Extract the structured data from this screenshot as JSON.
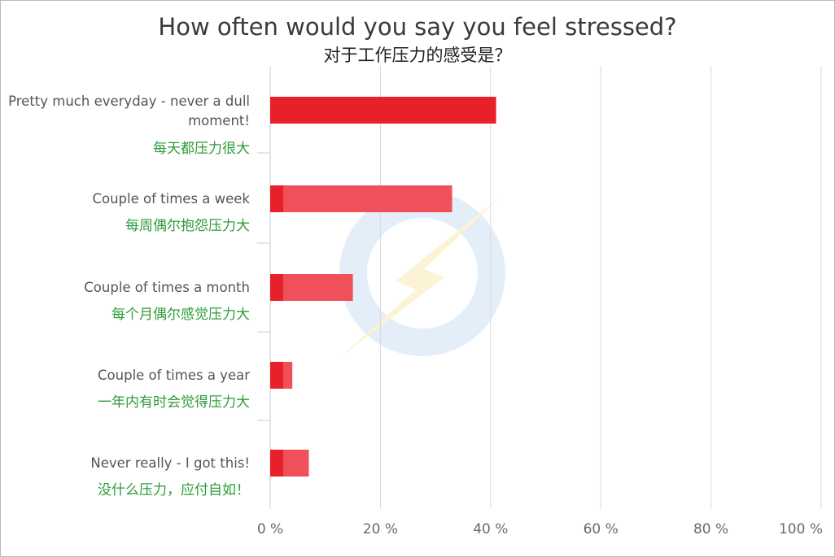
{
  "chart_data": {
    "type": "bar",
    "orientation": "horizontal",
    "title": "How often would you say you feel stressed?",
    "subtitle": "对于工作压力的感受是？",
    "categories": [
      {
        "label_lines": [
          "Pretty much everyday - never a dull",
          "moment!"
        ],
        "label_zh": "每天都压力很大",
        "value": 41
      },
      {
        "label_lines": [
          "Couple of times a week"
        ],
        "label_zh": "每周偶尔抱怨压力大",
        "value": 33
      },
      {
        "label_lines": [
          "Couple of times a month"
        ],
        "label_zh": "每个月偶尔感觉压力大",
        "value": 15
      },
      {
        "label_lines": [
          "Couple of times a year"
        ],
        "label_zh": "一年内有时会觉得压力大",
        "value": 4
      },
      {
        "label_lines": [
          "Never really - I got this!"
        ],
        "label_zh": "没什么压力，应付自如！",
        "value": 7
      }
    ],
    "xlim": [
      0,
      100
    ],
    "xticks": [
      0,
      20,
      40,
      60,
      80,
      100
    ],
    "tick_labels": [
      "0 %",
      "20 %",
      "40 %",
      "60 %",
      "80 %",
      "100 %"
    ],
    "grid": true,
    "bar_color": "#e8202a",
    "bar_highlight_color": "#f0505a"
  }
}
